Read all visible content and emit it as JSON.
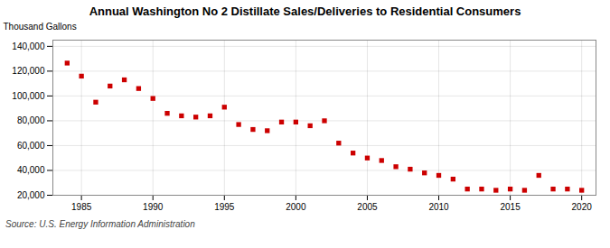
{
  "chart_data": {
    "type": "scatter",
    "title": "Annual Washington No 2 Distillate Sales/Deliveries to Residential Consumers",
    "ylabel": "Thousand Gallons",
    "source": "Source: U.S. Energy Information Administration",
    "x": [
      1984,
      1985,
      1986,
      1987,
      1988,
      1989,
      1990,
      1991,
      1992,
      1993,
      1994,
      1995,
      1996,
      1997,
      1998,
      1999,
      2000,
      2001,
      2002,
      2003,
      2004,
      2005,
      2006,
      2007,
      2008,
      2009,
      2010,
      2011,
      2012,
      2013,
      2014,
      2015,
      2016,
      2017,
      2018,
      2019,
      2020
    ],
    "values": [
      126500,
      116000,
      95000,
      108000,
      113000,
      106000,
      98000,
      86000,
      84000,
      83000,
      84000,
      91000,
      77000,
      73000,
      72000,
      79000,
      79000,
      76000,
      80000,
      62000,
      54000,
      50000,
      48000,
      43000,
      41000,
      38000,
      36000,
      33000,
      25000,
      25000,
      24000,
      25000,
      24000,
      36000,
      25000,
      25000,
      24000
    ],
    "color": "#cc0000",
    "marker": "square",
    "xlim": [
      1983,
      2021
    ],
    "ylim": [
      20000,
      145000
    ],
    "xticks": [
      1985,
      1990,
      1995,
      2000,
      2005,
      2010,
      2015,
      2020
    ],
    "yticks": [
      {
        "value": 20000,
        "label": "20,000"
      },
      {
        "value": 40000,
        "label": "40,000"
      },
      {
        "value": 60000,
        "label": "60,000"
      },
      {
        "value": 80000,
        "label": "80,000"
      },
      {
        "value": 100000,
        "label": "100,000"
      },
      {
        "value": 120000,
        "label": "120,000"
      },
      {
        "value": 140000,
        "label": "140,000"
      }
    ],
    "grid": true
  }
}
